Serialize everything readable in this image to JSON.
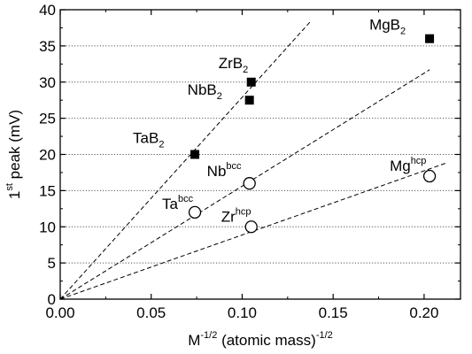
{
  "chart_data": {
    "type": "scatter",
    "x_axis": {
      "label_main": "M",
      "label_main_sup": "-1/2",
      "label_rest": " (atomic mass)",
      "label_rest_sup": "-1/2",
      "range": [
        0.0,
        0.22
      ],
      "ticks": [
        "0.00",
        "0.05",
        "0.10",
        "0.15",
        "0.20"
      ],
      "tick_values": [
        0.0,
        0.05,
        0.1,
        0.15,
        0.2
      ]
    },
    "y_axis": {
      "label_pre": "1",
      "label_sup": "st",
      "label_post": " peak (mV)",
      "range": [
        0,
        40
      ],
      "ticks": [
        "0",
        "5",
        "10",
        "15",
        "20",
        "25",
        "30",
        "35",
        "40"
      ],
      "tick_values": [
        0,
        5,
        10,
        15,
        20,
        25,
        30,
        35,
        40
      ]
    },
    "grid": "horizontal dotted",
    "series": [
      {
        "marker": "filled-square",
        "points": [
          {
            "label": "MgB",
            "sub": "2",
            "x": 0.203,
            "y": 36
          },
          {
            "label": "ZrB",
            "sub": "2",
            "x": 0.105,
            "y": 30
          },
          {
            "label": "NbB",
            "sub": "2",
            "x": 0.104,
            "y": 27.5
          },
          {
            "label": "TaB",
            "sub": "2",
            "x": 0.074,
            "y": 20
          }
        ]
      },
      {
        "marker": "open-circle",
        "points": [
          {
            "label": "Nb",
            "sup": "bcc",
            "x": 0.104,
            "y": 16
          },
          {
            "label": "Ta",
            "sup": "bcc",
            "x": 0.074,
            "y": 12
          },
          {
            "label": "Zr",
            "sup": "hcp",
            "x": 0.105,
            "y": 10
          },
          {
            "label": "Mg",
            "sup": "hcp",
            "x": 0.203,
            "y": 17
          }
        ]
      }
    ],
    "fit_lines": [
      {
        "style": "dashed",
        "from": [
          0,
          0
        ],
        "to": [
          0.138,
          38.5
        ]
      },
      {
        "style": "dashed",
        "from": [
          0,
          0
        ],
        "to": [
          0.203,
          31.7
        ]
      },
      {
        "style": "dashed",
        "from": [
          0,
          0
        ],
        "to": [
          0.212,
          18.8
        ]
      }
    ]
  }
}
